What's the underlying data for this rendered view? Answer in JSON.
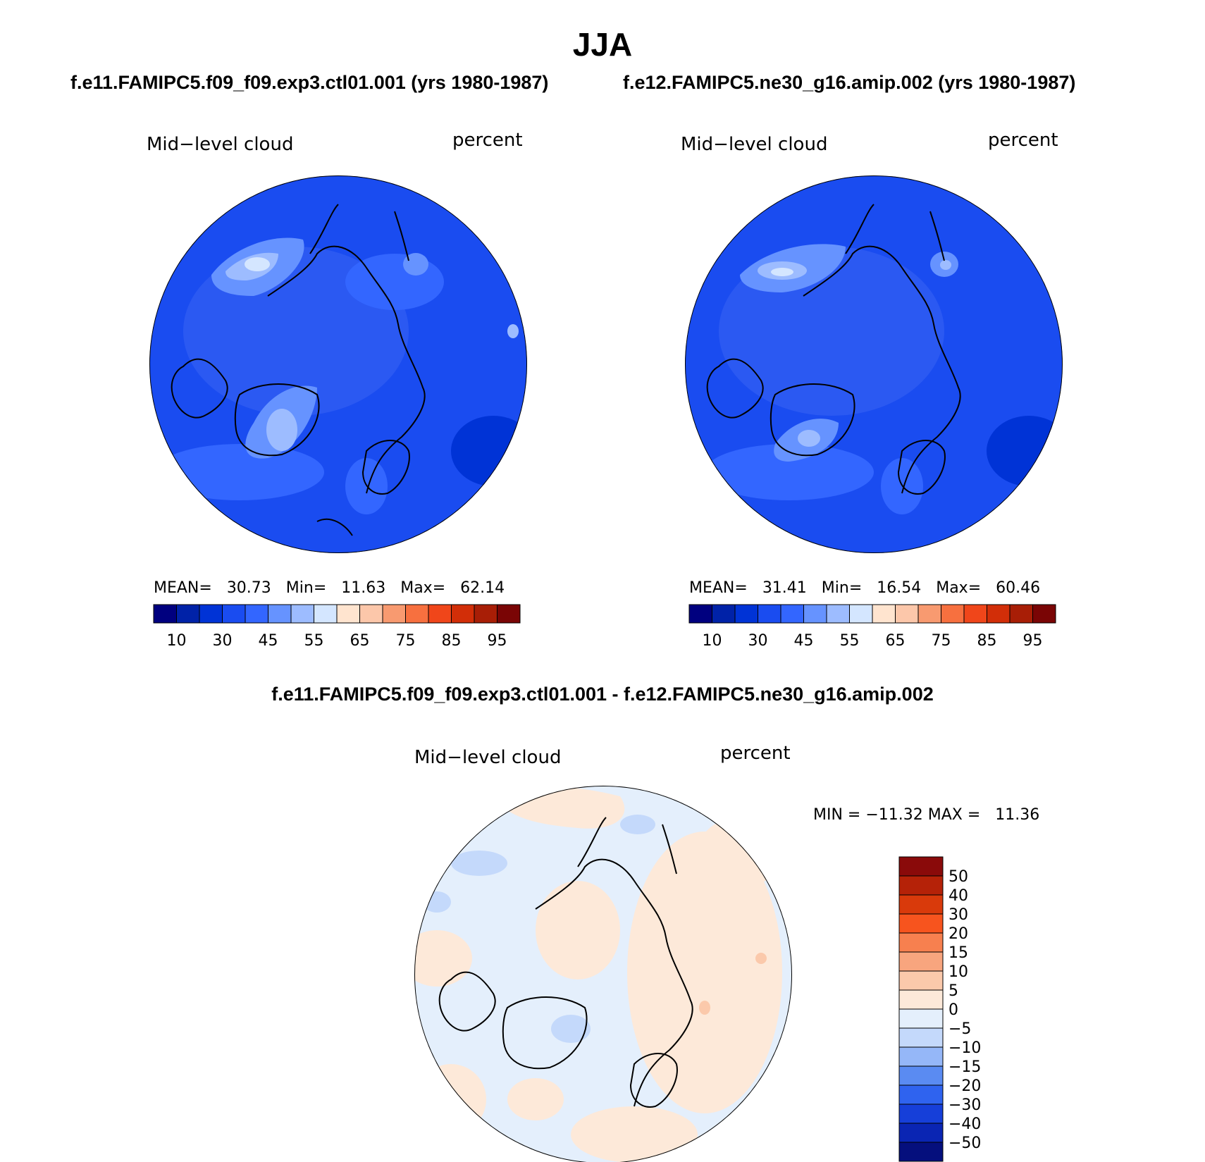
{
  "season": "JJA",
  "panels": [
    {
      "case": "f.e11.FAMIPC5.f09_f09.exp3.ctl01.001 (yrs 1980-1987)",
      "variable": "Mid−level cloud",
      "units": "percent",
      "stats": {
        "mean_label": "MEAN=",
        "mean": "30.73",
        "min_label": "Min=",
        "min": "11.63",
        "max_label": "Max=",
        "max": "62.14"
      }
    },
    {
      "case": "f.e12.FAMIPC5.ne30_g16.amip.002 (yrs 1980-1987)",
      "variable": "Mid−level cloud",
      "units": "percent",
      "stats": {
        "mean_label": "MEAN=",
        "mean": "31.41",
        "min_label": "Min=",
        "min": "16.54",
        "max_label": "Max=",
        "max": "60.46"
      }
    }
  ],
  "colorbar_abs": {
    "colors": [
      "#00007f",
      "#0022a8",
      "#0033d6",
      "#1a4cf0",
      "#3366ff",
      "#6693ff",
      "#9dbcff",
      "#d4e6ff",
      "#ffe4cf",
      "#fcc7aa",
      "#f89a70",
      "#f7703f",
      "#f0461a",
      "#d22e08",
      "#a81e06",
      "#7a0505"
    ],
    "tick_labels": [
      "10",
      "30",
      "45",
      "55",
      "65",
      "75",
      "85",
      "95"
    ]
  },
  "diff_panel": {
    "title": "f.e11.FAMIPC5.f09_f09.exp3.ctl01.001 - f.e12.FAMIPC5.ne30_g16.amip.002",
    "variable": "Mid−level cloud",
    "units": "percent",
    "minmax": "MIN = −11.32 MAX =   11.36"
  },
  "colorbar_diff": {
    "colors_top_to_bottom": [
      "#8a0a0a",
      "#b52208",
      "#d93a0b",
      "#f7541e",
      "#f7804f",
      "#f8a57e",
      "#fbc9ab",
      "#fde9d9",
      "#e4effc",
      "#c4d9fb",
      "#95b7f8",
      "#5a8bf2",
      "#2f63ef",
      "#163fd9",
      "#0a25b3",
      "#050f7d"
    ],
    "labels": [
      "50",
      "40",
      "30",
      "20",
      "15",
      "10",
      "5",
      "0",
      "−5",
      "−10",
      "−15",
      "−20",
      "−30",
      "−40",
      "−50"
    ]
  }
}
